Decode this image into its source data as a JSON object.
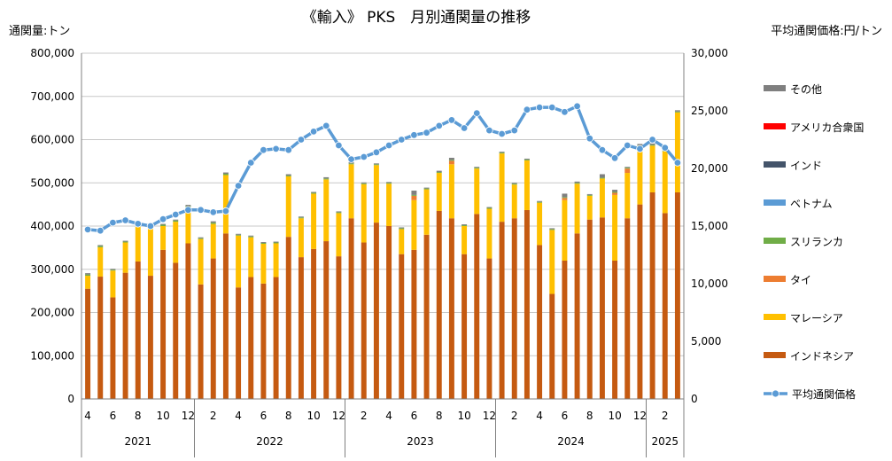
{
  "chart_data": {
    "type": "bar",
    "title": "《輸入》 PKS　月別通関量の推移",
    "ylabel": "通関量:トン",
    "y2label": "平均通関価格:円/トン",
    "ylim": [
      0,
      800000
    ],
    "y2lim": [
      0,
      30000
    ],
    "y_ticks": [
      "0",
      "100,000",
      "200,000",
      "300,000",
      "400,000",
      "500,000",
      "600,000",
      "700,000",
      "800,000"
    ],
    "y2_ticks": [
      "0",
      "5,000",
      "10,000",
      "15,000",
      "20,000",
      "25,000",
      "30,000"
    ],
    "grid": true,
    "legend_position": "right",
    "stacked": true,
    "categories": [
      "2021-04",
      "2021-05",
      "2021-06",
      "2021-07",
      "2021-08",
      "2021-09",
      "2021-10",
      "2021-11",
      "2021-12",
      "2022-01",
      "2022-02",
      "2022-03",
      "2022-04",
      "2022-05",
      "2022-06",
      "2022-07",
      "2022-08",
      "2022-09",
      "2022-10",
      "2022-11",
      "2022-12",
      "2023-01",
      "2023-02",
      "2023-03",
      "2023-04",
      "2023-05",
      "2023-06",
      "2023-07",
      "2023-08",
      "2023-09",
      "2023-10",
      "2023-11",
      "2023-12",
      "2024-01",
      "2024-02",
      "2024-03",
      "2024-04",
      "2024-05",
      "2024-06",
      "2024-07",
      "2024-08",
      "2024-09",
      "2024-10",
      "2024-11",
      "2024-12",
      "2025-01",
      "2025-02",
      "2025-03"
    ],
    "x_tick_labels": [
      "4",
      "",
      "6",
      "",
      "8",
      "",
      "10",
      "",
      "12",
      "",
      "2",
      "",
      "4",
      "",
      "6",
      "",
      "8",
      "",
      "10",
      "",
      "12",
      "",
      "2",
      "",
      "4",
      "",
      "6",
      "",
      "8",
      "",
      "10",
      "",
      "12",
      "",
      "2",
      "",
      "4",
      "",
      "6",
      "",
      "8",
      "",
      "10",
      "",
      "12",
      "",
      "2",
      ""
    ],
    "year_groups": [
      {
        "label": "2021",
        "count": 9
      },
      {
        "label": "2022",
        "count": 12
      },
      {
        "label": "2023",
        "count": 12
      },
      {
        "label": "2024",
        "count": 12
      },
      {
        "label": "2025",
        "count": 3
      }
    ],
    "series": [
      {
        "name": "インドネシア",
        "color": "#C55A11",
        "values": [
          255000,
          283000,
          235000,
          292000,
          318000,
          285000,
          345000,
          315000,
          360000,
          265000,
          325000,
          383000,
          258000,
          282000,
          267000,
          282000,
          375000,
          328000,
          347000,
          365000,
          330000,
          418000,
          362000,
          408000,
          400000,
          335000,
          345000,
          380000,
          435000,
          418000,
          335000,
          428000,
          325000,
          410000,
          418000,
          437000,
          356000,
          243000,
          320000,
          383000,
          415000,
          420000,
          320000,
          418000,
          450000,
          478000,
          430000,
          478000
        ]
      },
      {
        "name": "マレーシア",
        "color": "#FFC000",
        "values": [
          30000,
          68000,
          62000,
          70000,
          80000,
          115000,
          55000,
          95000,
          83000,
          105000,
          80000,
          135000,
          120000,
          92000,
          92000,
          78000,
          140000,
          90000,
          128000,
          143000,
          100000,
          125000,
          135000,
          133000,
          98000,
          58000,
          115000,
          105000,
          88000,
          125000,
          65000,
          105000,
          115000,
          158000,
          78000,
          115000,
          98000,
          148000,
          140000,
          115000,
          55000,
          90000,
          152000,
          105000,
          135000,
          108000,
          143000,
          185000
        ]
      },
      {
        "name": "タイ",
        "color": "#ED7D31",
        "values": [
          0,
          0,
          0,
          0,
          0,
          0,
          0,
          0,
          0,
          0,
          0,
          0,
          0,
          0,
          0,
          0,
          0,
          0,
          0,
          0,
          0,
          0,
          0,
          0,
          0,
          0,
          10000,
          0,
          0,
          8000,
          0,
          0,
          0,
          0,
          0,
          0,
          0,
          0,
          5000,
          0,
          0,
          0,
          5000,
          10000,
          0,
          0,
          0,
          0
        ]
      },
      {
        "name": "スリランカ",
        "color": "#70AD47",
        "values": [
          3000,
          3000,
          2000,
          2000,
          3000,
          2000,
          3000,
          3000,
          3000,
          2000,
          3000,
          3000,
          2000,
          2000,
          2000,
          2000,
          2000,
          2000,
          2000,
          2000,
          2000,
          2000,
          2000,
          2000,
          2000,
          2000,
          2000,
          2000,
          2000,
          2000,
          2000,
          2000,
          2000,
          2000,
          2000,
          2000,
          2000,
          2000,
          2000,
          2000,
          2000,
          2000,
          2000,
          2000,
          2000,
          2000,
          2000,
          2000
        ]
      },
      {
        "name": "ベトナム",
        "color": "#5B9BD5",
        "values": [
          0,
          0,
          0,
          0,
          0,
          0,
          0,
          0,
          0,
          0,
          0,
          0,
          0,
          0,
          0,
          0,
          0,
          0,
          0,
          0,
          0,
          0,
          0,
          0,
          0,
          0,
          0,
          0,
          0,
          0,
          0,
          0,
          0,
          0,
          0,
          0,
          0,
          0,
          0,
          0,
          0,
          0,
          0,
          0,
          0,
          0,
          0,
          0
        ]
      },
      {
        "name": "インド",
        "color": "#44546A",
        "values": [
          0,
          0,
          0,
          0,
          0,
          0,
          0,
          0,
          0,
          0,
          0,
          0,
          0,
          0,
          0,
          0,
          0,
          0,
          0,
          0,
          0,
          0,
          0,
          0,
          0,
          0,
          0,
          0,
          0,
          0,
          0,
          0,
          0,
          0,
          0,
          0,
          0,
          0,
          0,
          0,
          0,
          0,
          0,
          0,
          0,
          0,
          0,
          0
        ]
      },
      {
        "name": "アメリカ合衆国",
        "color": "#FF0000",
        "values": [
          0,
          0,
          0,
          0,
          0,
          0,
          0,
          0,
          0,
          0,
          0,
          0,
          0,
          0,
          0,
          0,
          0,
          0,
          0,
          0,
          0,
          0,
          0,
          0,
          0,
          0,
          0,
          0,
          0,
          0,
          0,
          0,
          0,
          0,
          0,
          0,
          0,
          0,
          0,
          0,
          0,
          0,
          0,
          0,
          0,
          0,
          0,
          0
        ]
      },
      {
        "name": "その他",
        "color": "#7F7F7F",
        "values": [
          3000,
          2000,
          2000,
          2000,
          3000,
          2000,
          2000,
          2000,
          3000,
          2000,
          3000,
          3000,
          2000,
          2000,
          2000,
          2000,
          3000,
          2000,
          2000,
          3000,
          2000,
          3000,
          2000,
          2000,
          2000,
          2000,
          10000,
          2000,
          3000,
          5000,
          2000,
          2000,
          2000,
          2000,
          2000,
          2000,
          2000,
          2000,
          8000,
          3000,
          2000,
          8000,
          5000,
          2000,
          3000,
          3000,
          2000,
          3000
        ]
      }
    ],
    "line_series": {
      "name": "平均通関価格",
      "color": "#5B9BD5",
      "axis": "y2",
      "values": [
        14700,
        14600,
        15300,
        15500,
        15200,
        15000,
        15600,
        16000,
        16400,
        16400,
        16200,
        16300,
        18500,
        20500,
        21600,
        21700,
        21600,
        22500,
        23200,
        23700,
        22000,
        20800,
        21000,
        21400,
        22000,
        22500,
        22900,
        23100,
        23700,
        24200,
        23500,
        24800,
        23300,
        23000,
        23300,
        25100,
        25300,
        25300,
        24900,
        25400,
        22600,
        21600,
        20900,
        22000,
        21700,
        22500,
        21800,
        20500
      ]
    }
  }
}
